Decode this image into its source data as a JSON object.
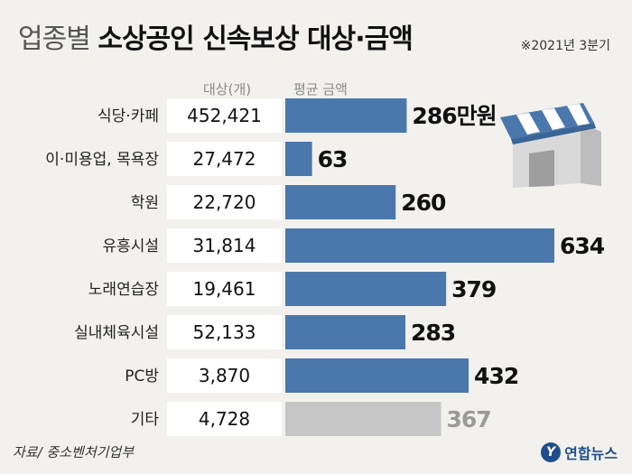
{
  "title": {
    "light": "업종별",
    "bold": "소상공인 신속보상 대상·금액"
  },
  "period": "※2021년 3분기",
  "column_headers": {
    "count": "대상(개)",
    "avg": "평균 금액"
  },
  "source": "자료/ 중소벤처기업부",
  "logo": {
    "mark": "Y",
    "brand": "연합뉴스"
  },
  "colors": {
    "bar": "#4a77ac",
    "bar_other": "#c6c6c6",
    "label_other": "#9a9a9a",
    "cell": "#ffffff"
  },
  "icons": {
    "decoration": "storefront-awning-icon"
  },
  "chart_data": {
    "type": "bar",
    "title": "업종별 소상공인 신속보상 대상·금액",
    "categories": [
      "식당·카페",
      "이·미용업, 목욕장",
      "학원",
      "유흥시설",
      "노래연습장",
      "실내체육시설",
      "PC방",
      "기타"
    ],
    "counts": [
      "452,421",
      "27,472",
      "22,720",
      "31,814",
      "19,461",
      "52,133",
      "3,870",
      "4,728"
    ],
    "values": [
      286,
      63,
      260,
      634,
      379,
      283,
      432,
      367
    ],
    "value_labels": [
      "286만원",
      "63",
      "260",
      "634",
      "379",
      "283",
      "432",
      "367"
    ],
    "xlim": [
      0,
      634
    ]
  }
}
